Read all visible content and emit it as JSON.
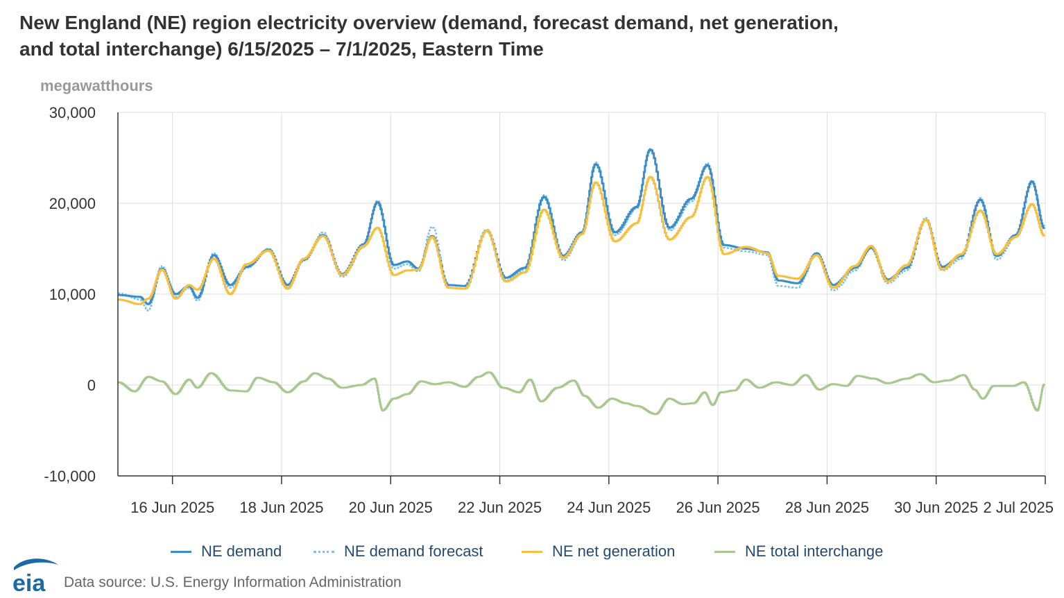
{
  "title": {
    "line1": "New England (NE) region electricity overview (demand, forecast demand, net generation,",
    "line2": "and total interchange) 6/15/2025 – 7/1/2025, Eastern Time"
  },
  "footer": {
    "logo_text": "eia",
    "source": "Data source: U.S. Energy Information Administration"
  },
  "colors": {
    "demand": "#3b8ec8",
    "forecast": "#7cc0e6",
    "generation": "#f5c040",
    "interchange": "#a8c890",
    "grid": "#dddddd",
    "axis": "#333333",
    "logo": "#1a6aa8"
  },
  "chart_data": {
    "type": "line",
    "ylabel": "megawatthours",
    "ylim": [
      -10000,
      30000
    ],
    "yticks": [
      -10000,
      0,
      10000,
      20000,
      30000
    ],
    "ytick_labels": [
      "-10,000",
      "0",
      "10,000",
      "20,000",
      "30,000"
    ],
    "xlim_days": [
      15.0,
      32.0
    ],
    "x_ticks": [
      {
        "day": 16,
        "label": "16 Jun 2025"
      },
      {
        "day": 18,
        "label": "18 Jun 2025"
      },
      {
        "day": 20,
        "label": "20 Jun 2025"
      },
      {
        "day": 22,
        "label": "22 Jun 2025"
      },
      {
        "day": 24,
        "label": "24 Jun 2025"
      },
      {
        "day": 26,
        "label": "26 Jun 2025"
      },
      {
        "day": 28,
        "label": "28 Jun 2025"
      },
      {
        "day": 30,
        "label": "30 Jun 2025"
      },
      {
        "day": 32,
        "label": "2 Jul 2025"
      }
    ],
    "legend": "bottom",
    "series": [
      {
        "name": "NE demand",
        "style": "solid",
        "points": [
          [
            15.0,
            9900
          ],
          [
            15.4,
            9700
          ],
          [
            15.55,
            8900
          ],
          [
            15.8,
            12800
          ],
          [
            16.05,
            10000
          ],
          [
            16.3,
            10900
          ],
          [
            16.45,
            9600
          ],
          [
            16.75,
            14300
          ],
          [
            17.05,
            11000
          ],
          [
            17.35,
            13000
          ],
          [
            17.75,
            14900
          ],
          [
            18.1,
            11000
          ],
          [
            18.4,
            13800
          ],
          [
            18.75,
            16500
          ],
          [
            19.1,
            12200
          ],
          [
            19.5,
            15500
          ],
          [
            19.75,
            20100
          ],
          [
            20.05,
            13200
          ],
          [
            20.3,
            13600
          ],
          [
            20.5,
            12800
          ],
          [
            20.75,
            16400
          ],
          [
            21.05,
            11000
          ],
          [
            21.35,
            10900
          ],
          [
            21.75,
            17000
          ],
          [
            22.1,
            11800
          ],
          [
            22.45,
            12900
          ],
          [
            22.8,
            20700
          ],
          [
            23.15,
            14200
          ],
          [
            23.5,
            16800
          ],
          [
            23.75,
            24300
          ],
          [
            24.1,
            16800
          ],
          [
            24.5,
            19600
          ],
          [
            24.75,
            25900
          ],
          [
            25.1,
            17300
          ],
          [
            25.5,
            20500
          ],
          [
            25.8,
            24200
          ],
          [
            26.1,
            15400
          ],
          [
            26.5,
            15000
          ],
          [
            26.9,
            14600
          ],
          [
            27.1,
            11500
          ],
          [
            27.45,
            11200
          ],
          [
            27.8,
            14500
          ],
          [
            28.1,
            11000
          ],
          [
            28.5,
            12900
          ],
          [
            28.8,
            15100
          ],
          [
            29.1,
            11600
          ],
          [
            29.45,
            12900
          ],
          [
            29.8,
            18200
          ],
          [
            30.1,
            13000
          ],
          [
            30.45,
            14200
          ],
          [
            30.8,
            20400
          ],
          [
            31.1,
            14200
          ],
          [
            31.45,
            16500
          ],
          [
            31.75,
            22400
          ],
          [
            31.98,
            17200
          ]
        ]
      },
      {
        "name": "NE demand forecast",
        "style": "dotted",
        "points": [
          [
            15.0,
            10100
          ],
          [
            15.4,
            9400
          ],
          [
            15.55,
            8200
          ],
          [
            15.8,
            13100
          ],
          [
            16.05,
            9700
          ],
          [
            16.3,
            10700
          ],
          [
            16.45,
            9300
          ],
          [
            16.75,
            14500
          ],
          [
            17.05,
            10700
          ],
          [
            17.35,
            12900
          ],
          [
            17.75,
            15000
          ],
          [
            18.1,
            10700
          ],
          [
            18.4,
            13700
          ],
          [
            18.75,
            16800
          ],
          [
            19.1,
            11900
          ],
          [
            19.5,
            15200
          ],
          [
            19.75,
            20300
          ],
          [
            20.05,
            12800
          ],
          [
            20.3,
            13300
          ],
          [
            20.5,
            12500
          ],
          [
            20.75,
            17400
          ],
          [
            21.05,
            10700
          ],
          [
            21.35,
            10600
          ],
          [
            21.75,
            17100
          ],
          [
            22.1,
            11500
          ],
          [
            22.45,
            12700
          ],
          [
            22.8,
            20900
          ],
          [
            23.15,
            13700
          ],
          [
            23.5,
            16600
          ],
          [
            23.75,
            24500
          ],
          [
            24.1,
            16500
          ],
          [
            24.5,
            19400
          ],
          [
            24.75,
            26000
          ],
          [
            25.1,
            17000
          ],
          [
            25.5,
            20200
          ],
          [
            25.8,
            24400
          ],
          [
            26.1,
            15100
          ],
          [
            26.5,
            14700
          ],
          [
            26.9,
            14300
          ],
          [
            27.1,
            10900
          ],
          [
            27.45,
            10700
          ],
          [
            27.8,
            14400
          ],
          [
            28.1,
            10400
          ],
          [
            28.5,
            12600
          ],
          [
            28.8,
            15200
          ],
          [
            29.1,
            11200
          ],
          [
            29.45,
            12600
          ],
          [
            29.8,
            18400
          ],
          [
            30.1,
            12600
          ],
          [
            30.45,
            13900
          ],
          [
            30.8,
            20600
          ],
          [
            31.1,
            13800
          ],
          [
            31.45,
            16300
          ],
          [
            31.75,
            22500
          ],
          [
            31.98,
            17500
          ]
        ]
      },
      {
        "name": "NE net generation",
        "style": "solid",
        "points": [
          [
            15.0,
            9400
          ],
          [
            15.4,
            8900
          ],
          [
            15.55,
            9500
          ],
          [
            15.8,
            12700
          ],
          [
            16.05,
            9500
          ],
          [
            16.3,
            11000
          ],
          [
            16.45,
            10500
          ],
          [
            16.75,
            13900
          ],
          [
            17.05,
            10000
          ],
          [
            17.35,
            13300
          ],
          [
            17.75,
            14800
          ],
          [
            18.1,
            10600
          ],
          [
            18.4,
            13900
          ],
          [
            18.75,
            16400
          ],
          [
            19.1,
            12100
          ],
          [
            19.5,
            15300
          ],
          [
            19.75,
            17300
          ],
          [
            20.05,
            12100
          ],
          [
            20.3,
            12600
          ],
          [
            20.5,
            12700
          ],
          [
            20.75,
            16300
          ],
          [
            21.05,
            10700
          ],
          [
            21.35,
            10600
          ],
          [
            21.75,
            17000
          ],
          [
            22.1,
            11400
          ],
          [
            22.45,
            12400
          ],
          [
            22.8,
            19300
          ],
          [
            23.15,
            14000
          ],
          [
            23.5,
            16600
          ],
          [
            23.75,
            22300
          ],
          [
            24.1,
            15800
          ],
          [
            24.5,
            17800
          ],
          [
            24.75,
            22900
          ],
          [
            25.1,
            16000
          ],
          [
            25.5,
            18500
          ],
          [
            25.8,
            22900
          ],
          [
            26.1,
            14400
          ],
          [
            26.5,
            15200
          ],
          [
            26.9,
            14500
          ],
          [
            27.1,
            12000
          ],
          [
            27.45,
            11700
          ],
          [
            27.8,
            14300
          ],
          [
            28.1,
            10700
          ],
          [
            28.5,
            13100
          ],
          [
            28.8,
            15300
          ],
          [
            29.1,
            11400
          ],
          [
            29.45,
            13200
          ],
          [
            29.8,
            18200
          ],
          [
            30.1,
            12700
          ],
          [
            30.45,
            14400
          ],
          [
            30.8,
            19200
          ],
          [
            31.1,
            14400
          ],
          [
            31.45,
            16300
          ],
          [
            31.75,
            19900
          ],
          [
            31.98,
            16400
          ]
        ]
      },
      {
        "name": "NE total interchange",
        "style": "solid",
        "points": [
          [
            15.0,
            300
          ],
          [
            15.3,
            -700
          ],
          [
            15.55,
            900
          ],
          [
            15.8,
            400
          ],
          [
            16.05,
            -1000
          ],
          [
            16.3,
            600
          ],
          [
            16.45,
            -300
          ],
          [
            16.7,
            1300
          ],
          [
            17.05,
            -600
          ],
          [
            17.35,
            -700
          ],
          [
            17.55,
            800
          ],
          [
            17.85,
            300
          ],
          [
            18.1,
            -800
          ],
          [
            18.4,
            400
          ],
          [
            18.6,
            1300
          ],
          [
            18.85,
            700
          ],
          [
            19.1,
            -300
          ],
          [
            19.45,
            0
          ],
          [
            19.7,
            700
          ],
          [
            19.85,
            -2800
          ],
          [
            20.05,
            -1500
          ],
          [
            20.3,
            -1000
          ],
          [
            20.55,
            400
          ],
          [
            20.8,
            100
          ],
          [
            21.05,
            300
          ],
          [
            21.35,
            -200
          ],
          [
            21.6,
            900
          ],
          [
            21.8,
            1400
          ],
          [
            22.05,
            -300
          ],
          [
            22.35,
            -800
          ],
          [
            22.55,
            600
          ],
          [
            22.75,
            -1800
          ],
          [
            23.05,
            -300
          ],
          [
            23.35,
            500
          ],
          [
            23.55,
            -1200
          ],
          [
            23.8,
            -2500
          ],
          [
            24.05,
            -1500
          ],
          [
            24.3,
            -2000
          ],
          [
            24.5,
            -2300
          ],
          [
            24.85,
            -3200
          ],
          [
            25.1,
            -1500
          ],
          [
            25.35,
            -2100
          ],
          [
            25.55,
            -2000
          ],
          [
            25.75,
            -800
          ],
          [
            25.9,
            -2200
          ],
          [
            26.05,
            -800
          ],
          [
            26.3,
            -600
          ],
          [
            26.5,
            600
          ],
          [
            26.75,
            -300
          ],
          [
            27.05,
            300
          ],
          [
            27.35,
            0
          ],
          [
            27.6,
            1100
          ],
          [
            27.85,
            -500
          ],
          [
            28.1,
            100
          ],
          [
            28.35,
            -100
          ],
          [
            28.55,
            1000
          ],
          [
            28.85,
            700
          ],
          [
            29.1,
            200
          ],
          [
            29.45,
            700
          ],
          [
            29.7,
            1200
          ],
          [
            29.95,
            300
          ],
          [
            30.2,
            500
          ],
          [
            30.5,
            1100
          ],
          [
            30.7,
            -500
          ],
          [
            30.85,
            -1500
          ],
          [
            31.05,
            -100
          ],
          [
            31.4,
            -100
          ],
          [
            31.6,
            300
          ],
          [
            31.85,
            -2800
          ],
          [
            31.98,
            100
          ]
        ]
      }
    ]
  }
}
